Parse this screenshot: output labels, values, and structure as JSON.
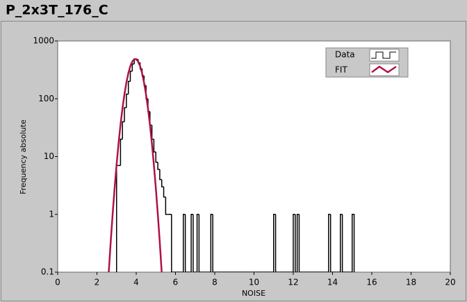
{
  "chart_data": {
    "type": "histogram",
    "title": "P_2x3T_176_C",
    "xlabel": "NOISE",
    "ylabel": "Frequency absolute",
    "xlim": [
      0,
      20
    ],
    "xticks": [
      0,
      2,
      4,
      6,
      8,
      10,
      12,
      14,
      16,
      18,
      20
    ],
    "ylim": [
      0.1,
      1000
    ],
    "yticks": [
      0.1,
      1,
      10,
      100,
      1000
    ],
    "ylog": true,
    "series": [
      {
        "name": "Data",
        "color": "#000000",
        "bins": [
          3.0,
          3.1,
          3.2,
          3.3,
          3.4,
          3.5,
          3.6,
          3.7,
          3.8,
          3.9,
          4.0,
          4.1,
          4.2,
          4.3,
          4.4,
          4.5,
          4.6,
          4.7,
          4.8,
          4.9,
          5.0,
          5.1,
          5.2,
          5.3,
          5.4,
          5.5,
          5.6,
          5.7,
          5.8,
          6.4,
          6.5,
          6.8,
          6.9,
          7.1,
          7.2,
          7.8,
          7.9,
          11.0,
          11.1,
          12.0,
          12.1,
          12.2,
          12.3,
          13.8,
          13.9,
          14.4,
          14.5,
          15.0,
          15.1
        ],
        "values": [
          7,
          7,
          20,
          40,
          70,
          120,
          200,
          300,
          400,
          480,
          480,
          420,
          330,
          250,
          170,
          100,
          60,
          35,
          20,
          12,
          8,
          6,
          4,
          3,
          2,
          1,
          1,
          1,
          0,
          1,
          0,
          1,
          0,
          1,
          0,
          1,
          0,
          1,
          0,
          1,
          0,
          1,
          0,
          1,
          0,
          1,
          0,
          1
        ]
      },
      {
        "name": "FIT",
        "type": "line",
        "color": "#b0104a",
        "x": [
          2.6,
          2.7,
          2.8,
          2.9,
          3.0,
          3.1,
          3.2,
          3.3,
          3.4,
          3.5,
          3.6,
          3.7,
          3.8,
          3.9,
          4.0,
          4.1,
          4.2,
          4.3,
          4.4,
          4.5,
          4.6,
          4.7,
          4.8,
          4.9,
          5.0,
          5.1,
          5.2,
          5.3
        ],
        "values": [
          0.098,
          0.33,
          1.01,
          2.84,
          7.2,
          16.8,
          35.4,
          68,
          119,
          190,
          277,
          366,
          441,
          484,
          484,
          441,
          366,
          277,
          190,
          119,
          68,
          35.4,
          16.8,
          7.2,
          2.84,
          1.01,
          0.33,
          0.098
        ]
      }
    ]
  }
}
